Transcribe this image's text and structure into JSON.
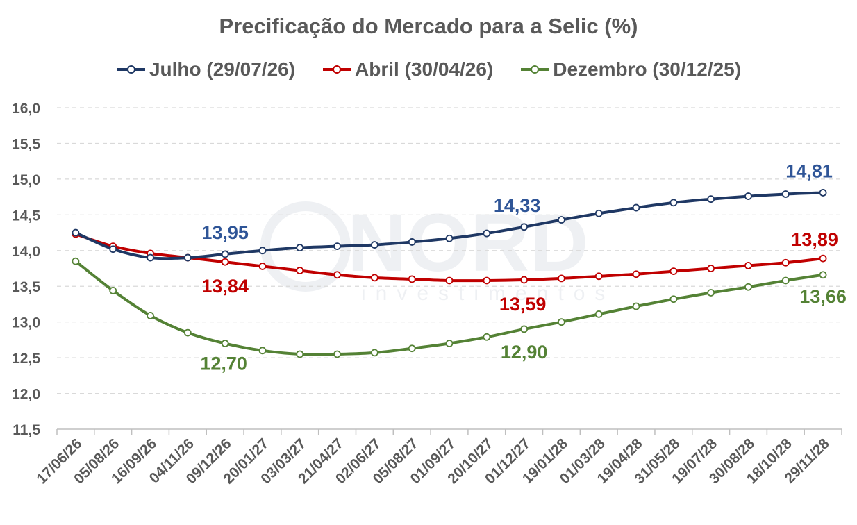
{
  "chart_data": {
    "type": "line",
    "title": "Precificação do Mercado para a Selic (%)",
    "xlabel": "",
    "ylabel": "",
    "ylim": [
      11.5,
      16.0
    ],
    "ytick_step": 0.5,
    "yticks": [
      "11,5",
      "12,0",
      "12,5",
      "13,0",
      "13,5",
      "14,0",
      "14,5",
      "15,0",
      "15,5",
      "16,0"
    ],
    "grid": "horizontal-dashed",
    "legend_position": "top",
    "categories": [
      "17/06/26",
      "05/08/26",
      "16/09/26",
      "04/11/26",
      "09/12/26",
      "20/01/27",
      "03/03/27",
      "21/04/27",
      "02/06/27",
      "05/08/27",
      "01/09/27",
      "20/10/27",
      "01/12/27",
      "19/01/28",
      "01/03/28",
      "19/04/28",
      "31/05/28",
      "19/07/28",
      "30/08/28",
      "18/10/28",
      "29/11/28"
    ],
    "series": [
      {
        "name": "Julho (29/07/26)",
        "color": "#1F3864",
        "label_color": "#2F5597",
        "values": [
          14.25,
          14.02,
          13.9,
          13.9,
          13.95,
          14.0,
          14.04,
          14.06,
          14.08,
          14.12,
          14.17,
          14.24,
          14.33,
          14.43,
          14.52,
          14.6,
          14.67,
          14.72,
          14.76,
          14.79,
          14.81
        ],
        "labels": [
          {
            "index": 4,
            "text": "13,95"
          },
          {
            "index": 12,
            "text": "14,33"
          },
          {
            "index": 20,
            "text": "14,81"
          }
        ]
      },
      {
        "name": "Abril (30/04/26)",
        "color": "#C00000",
        "label_color": "#C00000",
        "values": [
          14.23,
          14.06,
          13.96,
          13.9,
          13.84,
          13.78,
          13.72,
          13.66,
          13.62,
          13.6,
          13.58,
          13.58,
          13.59,
          13.61,
          13.64,
          13.67,
          13.71,
          13.75,
          13.79,
          13.83,
          13.89
        ],
        "labels": [
          {
            "index": 4,
            "text": "13,84"
          },
          {
            "index": 12,
            "text": "13,59"
          },
          {
            "index": 20,
            "text": "13,89"
          }
        ]
      },
      {
        "name": "Dezembro (30/12/25)",
        "color": "#548235",
        "label_color": "#548235",
        "values": [
          13.85,
          13.44,
          13.09,
          12.85,
          12.7,
          12.6,
          12.55,
          12.55,
          12.57,
          12.63,
          12.7,
          12.79,
          12.9,
          13.0,
          13.11,
          13.22,
          13.32,
          13.41,
          13.49,
          13.58,
          13.66
        ],
        "labels": [
          {
            "index": 4,
            "text": "12,70"
          },
          {
            "index": 12,
            "text": "12,90"
          },
          {
            "index": 20,
            "text": "13,66"
          }
        ]
      }
    ]
  },
  "watermark": {
    "brand": "NORD",
    "sub": "investimentos"
  }
}
